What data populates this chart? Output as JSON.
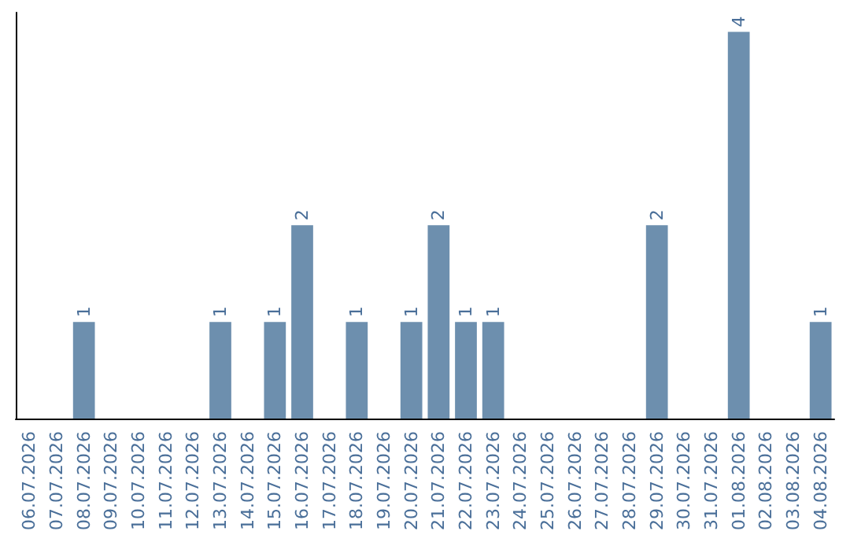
{
  "chart_data": {
    "type": "bar",
    "categories": [
      "06.07.2026",
      "07.07.2026",
      "08.07.2026",
      "09.07.2026",
      "10.07.2026",
      "11.07.2026",
      "12.07.2026",
      "13.07.2026",
      "14.07.2026",
      "15.07.2026",
      "16.07.2026",
      "17.07.2026",
      "18.07.2026",
      "19.07.2026",
      "20.07.2026",
      "21.07.2026",
      "22.07.2026",
      "23.07.2026",
      "24.07.2026",
      "25.07.2026",
      "26.07.2026",
      "27.07.2026",
      "28.07.2026",
      "29.07.2026",
      "30.07.2026",
      "31.07.2026",
      "01.08.2026",
      "02.08.2026",
      "03.08.2026",
      "04.08.2026"
    ],
    "values": [
      0,
      0,
      1,
      0,
      0,
      0,
      0,
      1,
      0,
      1,
      2,
      0,
      1,
      0,
      1,
      2,
      1,
      1,
      0,
      0,
      0,
      0,
      0,
      2,
      0,
      0,
      4,
      0,
      0,
      1
    ],
    "value_labels": [
      null,
      null,
      "1",
      null,
      null,
      null,
      null,
      "1",
      null,
      "1",
      "2",
      null,
      "1",
      null,
      "1",
      "2",
      "1",
      "1",
      null,
      null,
      null,
      null,
      null,
      "2",
      null,
      null,
      "4",
      null,
      null,
      "1"
    ],
    "color": "#6d8fae"
  }
}
